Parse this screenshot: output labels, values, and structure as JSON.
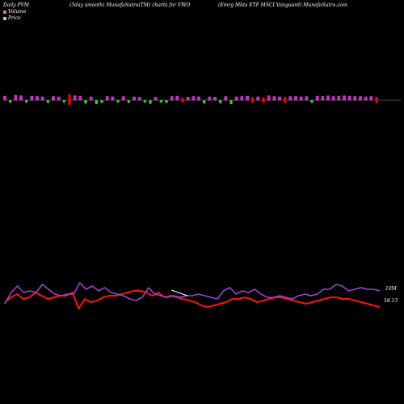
{
  "header": {
    "left": "Daily PVM",
    "middle": "(5day smooth) MunafaSutra(TM) charts for VWO",
    "right": "(Emrg Mkts ETF MSCI Vanguard) MunafaSutra.com"
  },
  "legend": {
    "volume_label": "Volume",
    "price_label": "Price",
    "volume_color": "#e060e0",
    "price_color": "#f4b183"
  },
  "right_labels": {
    "volume": "10M",
    "price": "58.13"
  },
  "colors": {
    "background": "#000000",
    "up_bar": "#cc22cc",
    "up_bar_edge": "#ff66ff",
    "down_bar": "#44cc44",
    "big_down_bar": "#ff0000",
    "volume_line": "#9944cc",
    "price_line": "#ff1111",
    "zero_line": "#888888",
    "gap_line": "#ffffff"
  },
  "chart_data": [
    {
      "type": "bar",
      "title": "",
      "direction": [
        "up",
        "down",
        "up",
        "up",
        "down",
        "up",
        "up",
        "up",
        "down",
        "up",
        "up",
        "down",
        "big",
        "up",
        "up",
        "down",
        "up",
        "down",
        "down",
        "up",
        "up",
        "down",
        "up",
        "down",
        "up",
        "up",
        "down",
        "down",
        "up",
        "down",
        "down",
        "up",
        "up",
        "big",
        "up",
        "up",
        "up",
        "down",
        "up",
        "up",
        "down",
        "up",
        "down",
        "up",
        "up",
        "up",
        "big",
        "up",
        "big",
        "up",
        "up",
        "up",
        "big",
        "up",
        "up",
        "up",
        "up",
        "down",
        "up",
        "up",
        "up",
        "up",
        "up",
        "up",
        "up",
        "up",
        "up",
        "up",
        "up",
        "big"
      ],
      "values": [
        0.55,
        0.4,
        0.7,
        0.6,
        0.35,
        0.55,
        0.5,
        0.45,
        0.4,
        0.5,
        0.45,
        0.35,
        1.0,
        0.6,
        0.55,
        0.5,
        0.45,
        0.6,
        0.4,
        0.5,
        0.45,
        0.35,
        0.5,
        0.4,
        0.45,
        0.4,
        0.35,
        0.55,
        0.4,
        0.35,
        0.4,
        0.5,
        0.55,
        0.45,
        0.4,
        0.5,
        0.45,
        0.5,
        0.45,
        0.4,
        0.45,
        0.5,
        0.6,
        0.45,
        0.5,
        0.55,
        0.5,
        0.45,
        0.5,
        0.6,
        0.5,
        0.45,
        0.55,
        0.5,
        0.5,
        0.45,
        0.5,
        0.4,
        0.55,
        0.5,
        0.6,
        0.5,
        0.55,
        0.6,
        0.55,
        0.5,
        0.5,
        0.45,
        0.5,
        0.55
      ],
      "baseline_label": ""
    },
    {
      "type": "line",
      "title": "",
      "series": [
        {
          "values": [
            6,
            9,
            11,
            8,
            9,
            12,
            10,
            8,
            9,
            10,
            10,
            12,
            2,
            8,
            6,
            7,
            9,
            10,
            10,
            11,
            12,
            13,
            13,
            12,
            10,
            12,
            9,
            10,
            9,
            8,
            7,
            6,
            4,
            3,
            4,
            5,
            6,
            8,
            8,
            9,
            8,
            6,
            7,
            8,
            9,
            9,
            8,
            7,
            6,
            5,
            6,
            7,
            8,
            9,
            9,
            8,
            8,
            7,
            6,
            5,
            4,
            3
          ]
        },
        {
          "values": [
            5,
            12,
            16,
            12,
            13,
            12,
            17,
            14,
            11,
            10,
            11,
            11,
            18,
            14,
            16,
            13,
            15,
            12,
            11,
            10,
            8,
            7,
            9,
            15,
            11,
            10,
            9,
            10,
            9,
            10,
            10,
            11,
            10,
            9,
            8,
            13,
            15,
            11,
            13,
            12,
            14,
            11,
            9,
            9,
            10,
            9,
            8,
            10,
            11,
            10,
            11,
            14,
            14,
            17,
            16,
            13,
            14,
            15,
            14,
            14,
            13
          ]
        }
      ]
    }
  ]
}
